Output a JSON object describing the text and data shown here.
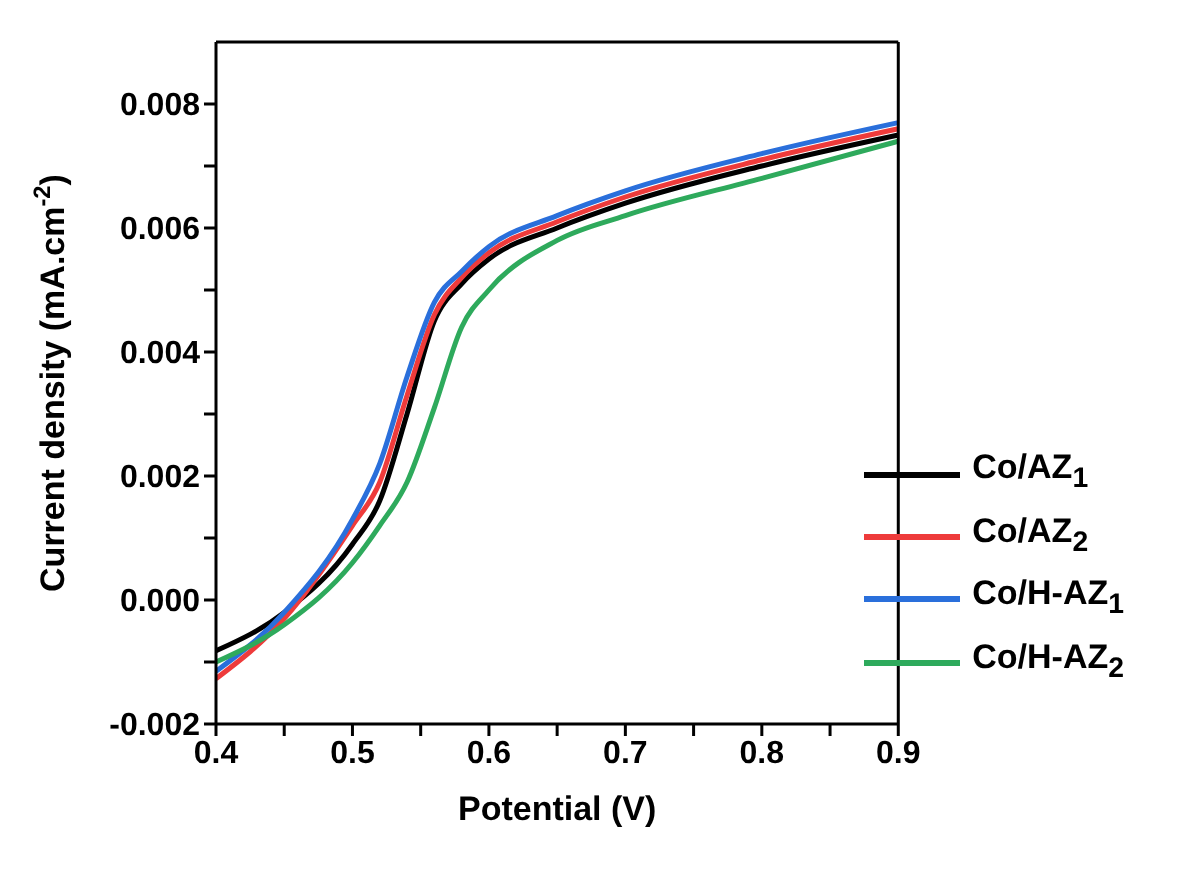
{
  "chart_data": {
    "type": "line",
    "xlabel": "Potential (V)",
    "ylabel": "Current density (mA.cm$^{-2}$)",
    "x": [
      0.4,
      0.45,
      0.5,
      0.52,
      0.54,
      0.56,
      0.58,
      0.6,
      0.65,
      0.7,
      0.8,
      0.9
    ],
    "series": [
      {
        "name": "Co/AZ$_{1}$",
        "color": "#000000",
        "values": [
          -0.00082,
          -0.0002,
          0.0009,
          0.0016,
          0.003,
          0.0045,
          0.0051,
          0.0055,
          0.006,
          0.0064,
          0.007,
          0.0075
        ]
      },
      {
        "name": "Co/AZ$_{2}$",
        "color": "#ee3b3b",
        "values": [
          -0.00127,
          -0.0003,
          0.0012,
          0.0019,
          0.0033,
          0.0046,
          0.0052,
          0.0056,
          0.0061,
          0.0065,
          0.0071,
          0.0076
        ]
      },
      {
        "name": "Co/H-AZ$_{1}$",
        "color": "#2a6fdb",
        "values": [
          -0.00115,
          -0.0002,
          0.0013,
          0.0022,
          0.0036,
          0.0048,
          0.0053,
          0.0057,
          0.0062,
          0.0066,
          0.0072,
          0.0077
        ]
      },
      {
        "name": "Co/H-AZ$_{2}$",
        "color": "#2eaa5c",
        "values": [
          -0.001,
          -0.0004,
          0.0006,
          0.0012,
          0.0019,
          0.0031,
          0.0044,
          0.005,
          0.0058,
          0.0062,
          0.0068,
          0.0074
        ]
      }
    ],
    "xlim": [
      0.4,
      0.9
    ],
    "xticks": [
      0.4,
      {
        "value": 0.45,
        "label": null
      },
      0.5,
      {
        "value": 0.55,
        "label": null
      },
      0.6,
      {
        "value": 0.65,
        "label": null
      },
      0.7,
      {
        "value": 0.75,
        "label": null
      },
      0.8,
      {
        "value": 0.85,
        "label": null
      },
      0.9
    ],
    "ylim": [
      -0.002,
      0.009
    ],
    "yticks": [
      {
        "value": -0.002,
        "label": "-0.002"
      },
      {
        "value": -0.001,
        "label": null
      },
      {
        "value": 0,
        "label": "0.000"
      },
      {
        "value": 0.001,
        "label": null
      },
      {
        "value": 0.002,
        "label": "0.002"
      },
      {
        "value": 0.003,
        "label": null
      },
      {
        "value": 0.004,
        "label": "0.004"
      },
      {
        "value": 0.005,
        "label": null
      },
      {
        "value": 0.006,
        "label": "0.006"
      },
      {
        "value": 0.007,
        "label": null
      },
      {
        "value": 0.008,
        "label": "0.008"
      }
    ],
    "grid": false,
    "legend": "bottom right",
    "marker": "none",
    "line_style": "solid"
  }
}
